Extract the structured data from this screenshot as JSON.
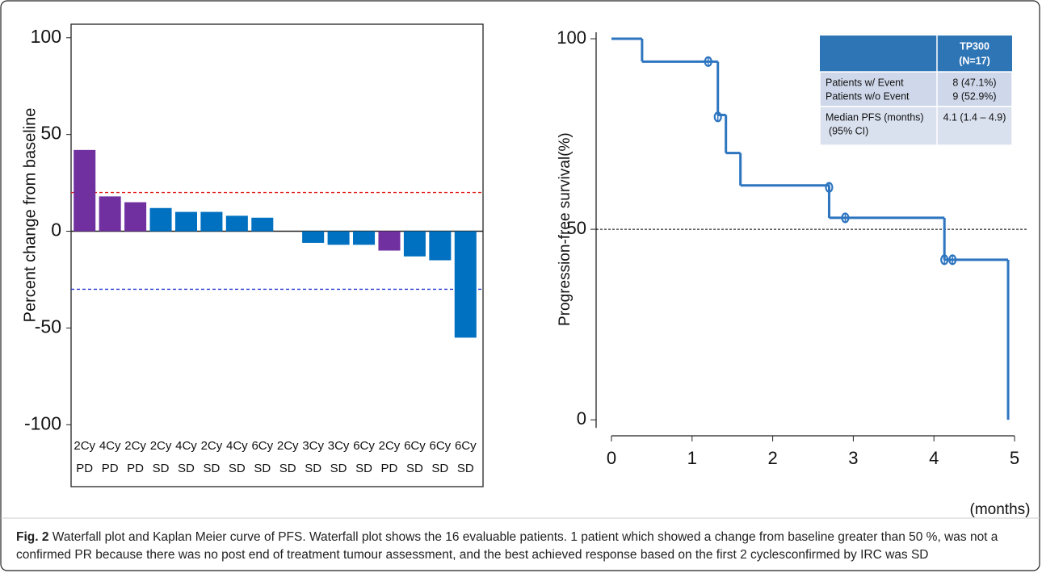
{
  "chart_data": [
    {
      "type": "bar",
      "ylabel": "Percent change from baseline",
      "categories": [
        "2Cy",
        "4Cy",
        "2Cy",
        "2Cy",
        "4Cy",
        "2Cy",
        "4Cy",
        "6Cy",
        "2Cy",
        "3Cy",
        "3Cy",
        "6Cy",
        "2Cy",
        "6Cy",
        "6Cy",
        "6Cy"
      ],
      "responses": [
        "PD",
        "PD",
        "PD",
        "SD",
        "SD",
        "SD",
        "SD",
        "SD",
        "SD",
        "SD",
        "SD",
        "SD",
        "PD",
        "SD",
        "SD",
        "SD"
      ],
      "values": [
        42,
        18,
        15,
        12,
        10,
        10,
        8,
        7,
        0,
        -6,
        -7,
        -7,
        -10,
        -13,
        -15,
        -55
      ],
      "colors": [
        "#7030a0",
        "#7030a0",
        "#7030a0",
        "#0070c0",
        "#0070c0",
        "#0070c0",
        "#0070c0",
        "#0070c0",
        "#0070c0",
        "#0070c0",
        "#0070c0",
        "#0070c0",
        "#7030a0",
        "#0070c0",
        "#0070c0",
        "#0070c0"
      ],
      "ylim": [
        -132,
        107
      ],
      "yticks": [
        -100,
        -50,
        0,
        50,
        100
      ],
      "reference_lines": [
        {
          "value": 20,
          "color": "#e0201c"
        },
        {
          "value": -30,
          "color": "#2438d0"
        }
      ]
    },
    {
      "type": "step",
      "ylabel": "Progression-free survival(%)",
      "xlabel": "(months)",
      "x": [
        0,
        0.38,
        1.32,
        1.42,
        1.6,
        2.7,
        4.13,
        4.92
      ],
      "values": [
        100,
        94,
        80,
        70,
        61.5,
        53,
        42,
        0
      ],
      "color": "#2e75c0",
      "censored_x": [
        1.2,
        1.32,
        2.7,
        2.9,
        4.13,
        4.23
      ],
      "censored_values": [
        94,
        79.5,
        61,
        53,
        42,
        42
      ],
      "xlim": [
        -0.19,
        5.16
      ],
      "ylim": [
        -4.2,
        101.7
      ],
      "xticks": [
        0,
        1,
        2,
        3,
        4,
        5
      ],
      "yticks": [
        0,
        50,
        100
      ],
      "reference_lines": [
        {
          "value": 50,
          "color": "#000000"
        }
      ],
      "table": {
        "header": [
          "TP300",
          "(N=17)"
        ],
        "rows": [
          [
            [
              "Patients w/ Event",
              "Patients w/o Event"
            ],
            [
              "8 (47.1%)",
              "9 (52.9%)"
            ]
          ],
          [
            [
              "Median PFS (months)",
              "(95% CI)"
            ],
            [
              "4.1 (1.4 – 4.9)"
            ]
          ]
        ]
      }
    }
  ],
  "caption": {
    "label": "Fig. 2",
    "text": "Waterfall plot and Kaplan Meier curve of PFS. Waterfall plot shows the 16 evaluable patients. 1 patient which showed a change from baseline greater than 50 %, was not a confirmed PR because there was no post end of treatment tumour assessment, and the best achieved response based on the first 2 cyclesconfirmed by IRC was SD"
  }
}
